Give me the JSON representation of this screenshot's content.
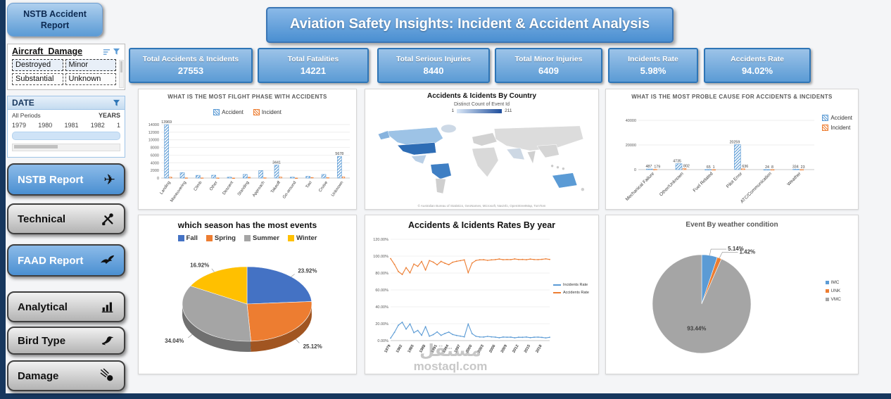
{
  "app": {
    "nav_button": "NSTB Accident Report",
    "title": "Aviation Safety Insights: Incident & Accident Analysis"
  },
  "kpis": [
    {
      "label": "Total Accidents & Incidents",
      "value": "27553"
    },
    {
      "label": "Total Fatalities",
      "value": "14221"
    },
    {
      "label": "Total Serious Injuries",
      "value": "8440"
    },
    {
      "label": "Total Minor Injuries",
      "value": "6409"
    },
    {
      "label": "Incidents Rate",
      "value": "5.98%"
    },
    {
      "label": "Accidents Rate",
      "value": "94.02%"
    }
  ],
  "sidebar": {
    "damage_slicer": {
      "title": "Aircraft_Damage",
      "items": [
        "Destroyed",
        "Minor",
        "Substantial",
        "Unknown"
      ]
    },
    "date_slicer": {
      "title": "DATE",
      "range_label": "All Periods",
      "level_label": "YEARS",
      "ticks": [
        "1979",
        "1980",
        "1981",
        "1982",
        "1"
      ]
    },
    "buttons": [
      {
        "label": "NSTB Report",
        "icon": "plane-icon",
        "variant": "blue"
      },
      {
        "label": "Technical",
        "icon": "tools-icon",
        "variant": "gray"
      },
      {
        "label": "FAAD Report",
        "icon": "eagle-icon",
        "variant": "blue"
      },
      {
        "label": "Analytical",
        "icon": "bar-chart-icon",
        "variant": "gray"
      },
      {
        "label": "Bird Type",
        "icon": "bird-icon",
        "variant": "gray"
      },
      {
        "label": "Damage",
        "icon": "comet-icon",
        "variant": "gray"
      }
    ]
  },
  "watermark": {
    "line1": "مستقل",
    "line2": "mostaql.com"
  },
  "chart_data": [
    {
      "id": "flight_phase_bar",
      "type": "bar",
      "title": "WHAT IS THE MOST FILGHT PHASE WITH ACCIDENTS",
      "categories": [
        "Landing",
        "Maneuvering",
        "Climb",
        "Other",
        "Descent",
        "Standing",
        "Approach",
        "Takeoff",
        "Go-around",
        "Taxi",
        "Cruise",
        "Unknown"
      ],
      "series": [
        {
          "name": "Accident",
          "color": "#5b9bd5",
          "values": [
            13969,
            1419,
            711,
            741,
            231,
            941,
            1941,
            3441,
            231,
            441,
            941,
            5678
          ]
        },
        {
          "name": "Incident",
          "color": "#ed7d31",
          "values": [
            259,
            57,
            46,
            38,
            12,
            214,
            96,
            304,
            9,
            156,
            128,
            329
          ]
        }
      ],
      "ylim": [
        0,
        14000
      ],
      "yticks": [
        0,
        2000,
        4000,
        6000,
        8000,
        10000,
        12000,
        14000
      ],
      "legend_position": "top"
    },
    {
      "id": "country_map",
      "type": "map",
      "title": "Accidents & Icidents By Country",
      "legend_title": "Distinct Count of Event Id",
      "legend_min": "1",
      "legend_max": "211",
      "attribution": "© Australian Bureau of Statistics, GeoNames, Microsoft, Navinfo, OpenStreetMap, TomTom"
    },
    {
      "id": "cause_bar",
      "type": "bar",
      "title": "WHAT IS THE MOST PROBLE CAUSE FOR ACCIDENTS & INCIDENTS",
      "categories": [
        "Mechanical Failure",
        "Other/Unknown",
        "Fuel Related",
        "Pilot Error",
        "ATC/Communication",
        "Weather"
      ],
      "series": [
        {
          "name": "Accident",
          "color": "#5b9bd5",
          "values": [
            487,
            4735,
            65,
            20259,
            24,
            334
          ]
        },
        {
          "name": "Incident",
          "color": "#ed7d31",
          "values": [
            179,
            802,
            1,
            636,
            8,
            23
          ]
        }
      ],
      "ylim": [
        0,
        40000
      ],
      "yticks": [
        0,
        20000,
        40000
      ],
      "legend_position": "right"
    },
    {
      "id": "season_pie",
      "type": "pie",
      "title": "which season has the most events",
      "labels": [
        "Fall",
        "Spring",
        "Summer",
        "Winter"
      ],
      "values": [
        23.92,
        25.12,
        34.04,
        16.92
      ],
      "colors": [
        "#4472c4",
        "#ed7d31",
        "#a5a5a5",
        "#ffc000"
      ],
      "label_format": "percent",
      "style": "3d",
      "legend_position": "top"
    },
    {
      "id": "rates_line",
      "type": "line",
      "title": "Accidents & Icidents Rates By year",
      "x": [
        1979,
        1980,
        1981,
        1982,
        1983,
        1984,
        1985,
        1986,
        1987,
        1988,
        1989,
        1990,
        1991,
        1992,
        1993,
        1994,
        1995,
        1996,
        1997,
        1998,
        1999,
        2000,
        2001,
        2002,
        2003,
        2004,
        2005,
        2006,
        2007,
        2008,
        2009,
        2010,
        2011,
        2012,
        2013,
        2014,
        2015,
        2016,
        2017,
        2018,
        2019,
        2020
      ],
      "series": [
        {
          "name": "Incidents Rate",
          "color": "#5b9bd5",
          "values": [
            2.9,
            9.8,
            18.2,
            21.7,
            13.6,
            19.8,
            9.4,
            12.1,
            6.3,
            16.4,
            5.2,
            7.1,
            10.3,
            6.2,
            8.4,
            10.1,
            7.2,
            6.1,
            5.3,
            4.4,
            19.6,
            8.2,
            5.1,
            4.3,
            4.2,
            5.0,
            4.4,
            4.1,
            3.4,
            4.2,
            4.0,
            4.1,
            3.3,
            4.0,
            3.9,
            4.2,
            3.5,
            4.0,
            4.1,
            3.8,
            3.2,
            3.9
          ]
        },
        {
          "name": "Accidents Rate",
          "color": "#ed7d31",
          "values": [
            97.1,
            90.2,
            81.8,
            78.3,
            86.4,
            80.2,
            90.6,
            87.9,
            93.7,
            83.6,
            94.8,
            92.9,
            89.7,
            93.8,
            91.6,
            89.9,
            92.8,
            93.9,
            94.7,
            95.6,
            80.4,
            91.8,
            94.9,
            95.7,
            95.8,
            95.0,
            95.6,
            95.9,
            96.6,
            95.8,
            96.0,
            95.9,
            96.7,
            96.0,
            96.1,
            95.8,
            96.5,
            96.0,
            95.9,
            96.2,
            96.8,
            96.1
          ]
        }
      ],
      "ylim": [
        0,
        120
      ],
      "ytick_step": 20,
      "ylabel_format": "percent2",
      "legend_position": "right"
    },
    {
      "id": "weather_pie",
      "type": "pie",
      "title": "Event By weather condition",
      "labels": [
        "IMC",
        "UNK",
        "VMC"
      ],
      "values": [
        5.14,
        1.42,
        93.44
      ],
      "colors": [
        "#5b9bd5",
        "#ed7d31",
        "#a5a5a5"
      ],
      "label_format": "percent",
      "style": "flat",
      "legend_position": "right"
    }
  ]
}
